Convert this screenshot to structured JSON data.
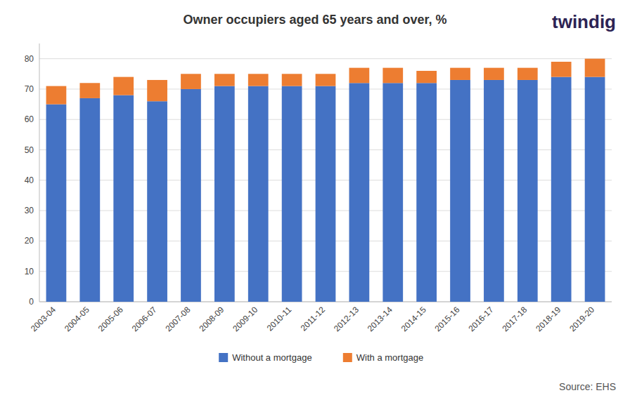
{
  "chart_data": {
    "type": "bar",
    "stacked": true,
    "title": "Owner occupiers aged 65 years and over, %",
    "categories": [
      "2003-04",
      "2004-05",
      "2005-06",
      "2006-07",
      "2007-08",
      "2008-09",
      "2009-10",
      "2010-11",
      "2011-12",
      "2012-13",
      "2013-14",
      "2014-15",
      "2015-16",
      "2016-17",
      "2017-18",
      "2018-19",
      "2019-20"
    ],
    "series": [
      {
        "name": "Without a mortgage",
        "color": "#4472C4",
        "values": [
          65,
          67,
          68,
          66,
          70,
          71,
          71,
          71,
          71,
          72,
          72,
          72,
          73,
          73,
          73,
          74,
          74
        ]
      },
      {
        "name": "With a mortgage",
        "color": "#ED7D31",
        "values": [
          6,
          5,
          6,
          7,
          5,
          4,
          4,
          4,
          4,
          5,
          5,
          4,
          4,
          4,
          4,
          5,
          6
        ]
      }
    ],
    "ylim": [
      0,
      85
    ],
    "yticks": [
      0,
      10,
      20,
      30,
      40,
      50,
      60,
      70,
      80
    ],
    "grid": true,
    "legend": "bottom",
    "annotations": [
      {
        "text": "Source: EHS"
      },
      {
        "text": "twindig",
        "color": "#2d2354"
      }
    ]
  }
}
